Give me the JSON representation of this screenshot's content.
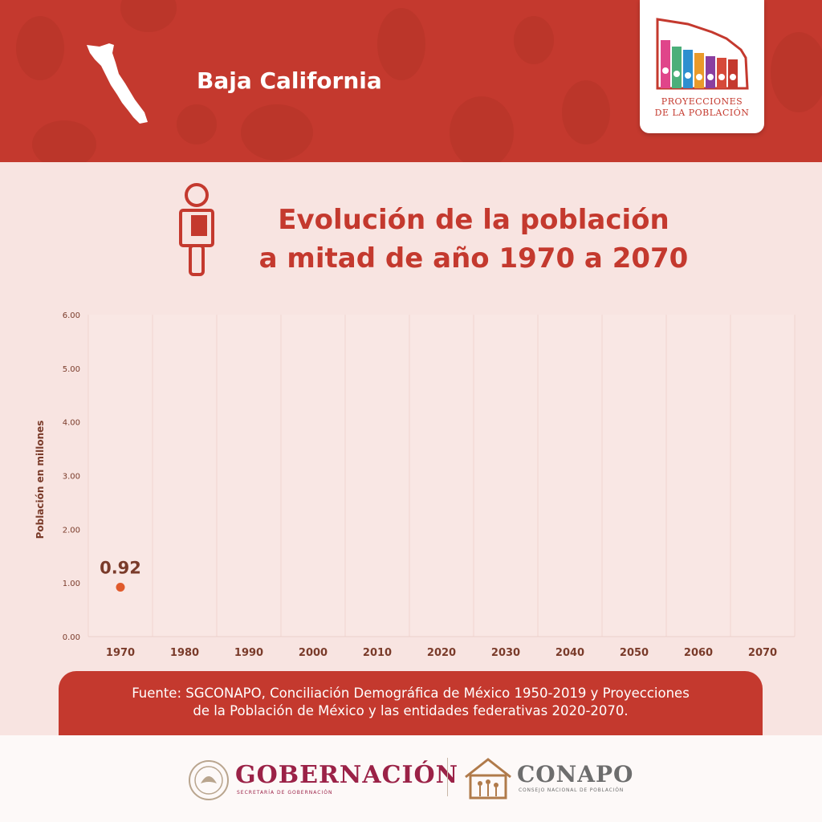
{
  "header": {
    "state_name": "Baja California",
    "logo_line1": "PROYECCIONES",
    "logo_line2": "DE LA POBLACIÓN"
  },
  "title": {
    "line1": "Evolución de la población",
    "line2": "a mitad de año 1970 a 2070"
  },
  "chart_data": {
    "type": "scatter",
    "x": [
      1970
    ],
    "y": [
      0.92
    ],
    "data_labels": [
      "0.92"
    ],
    "categories": [
      "1970",
      "1980",
      "1990",
      "2000",
      "2010",
      "2020",
      "2030",
      "2040",
      "2050",
      "2060",
      "2070"
    ],
    "y_ticks": [
      "0.00",
      "1.00",
      "2.00",
      "3.00",
      "4.00",
      "5.00",
      "6.00"
    ],
    "ylabel": "Población en millones",
    "xlabel": "",
    "ylim": [
      0,
      6
    ],
    "grid": true,
    "marker_color": "#e05a2b",
    "axis_text_color": "#7a3b2a"
  },
  "source": {
    "line1": "Fuente: SGCONAPO, Conciliación Demográfica de México 1950-2019 y Proyecciones",
    "line2": "de la Población de México  y las entidades federativas 2020-2070."
  },
  "footer": {
    "gob_name": "GOBERNACIÓN",
    "gob_sub": "SECRETARÍA DE GOBERNACIÓN",
    "conapo_name": "CONAPO",
    "conapo_sub": "CONSEJO NACIONAL DE POBLACIÓN"
  },
  "colors": {
    "brand_red": "#c4392e",
    "gob_maroon": "#9b2247",
    "background": "#f8e4e1"
  }
}
